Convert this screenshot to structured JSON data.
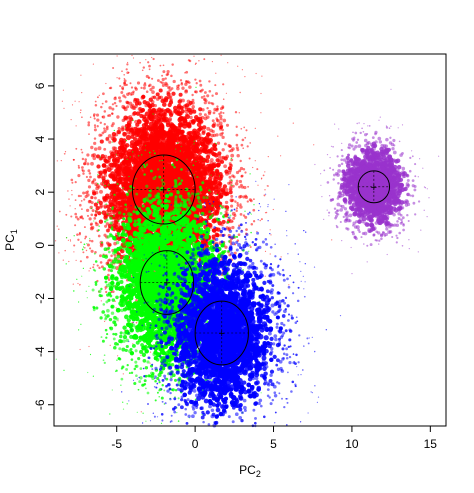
{
  "chart_data": {
    "type": "scatter",
    "title": "",
    "xlabel": "PC",
    "xlabel_sub": "2",
    "ylabel": "PC",
    "ylabel_sub": "1",
    "xlim": [
      -9,
      16
    ],
    "ylim": [
      -6.8,
      7.2
    ],
    "xticks": [
      -5,
      0,
      5,
      10,
      15
    ],
    "yticks": [
      -6,
      -4,
      -2,
      0,
      2,
      4,
      6
    ],
    "xtick_labels": [
      "-5",
      "0",
      "5",
      "10",
      "15"
    ],
    "ytick_labels": [
      "-6",
      "-4",
      "-2",
      "0",
      "2",
      "4",
      "6"
    ],
    "grid": false,
    "legend": "none",
    "series": [
      {
        "color": "#FF0000",
        "point_count": 3500,
        "center": [
          -2.0,
          2.1
        ],
        "ellipse": {
          "rx": 2.0,
          "ry": 1.3
        }
      },
      {
        "color": "#00FF00",
        "point_count": 3500,
        "center": [
          -1.8,
          -1.4
        ],
        "ellipse": {
          "rx": 1.7,
          "ry": 1.2
        }
      },
      {
        "color": "#0000FF",
        "point_count": 2800,
        "center": [
          1.7,
          -3.3
        ],
        "ellipse": {
          "rx": 1.7,
          "ry": 1.2
        }
      },
      {
        "color": "#9933CC",
        "point_count": 1000,
        "center": [
          11.4,
          2.2
        ],
        "ellipse": {
          "rx": 1.0,
          "ry": 0.6
        }
      }
    ]
  }
}
